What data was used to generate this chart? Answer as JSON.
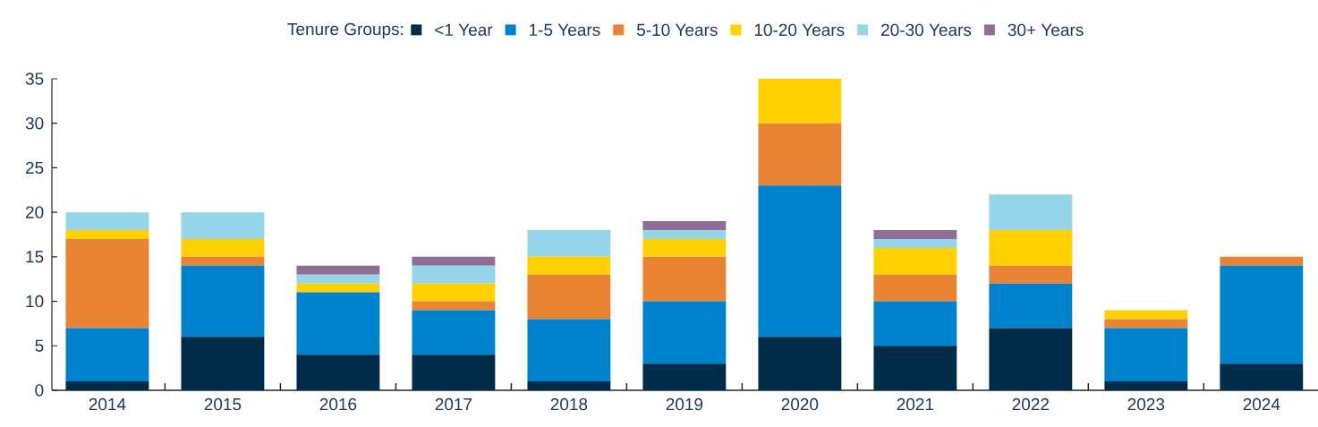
{
  "chart_data": {
    "type": "bar",
    "stacked": true,
    "legend_title": "Tenure Groups:",
    "legend": "top",
    "categories": [
      "2014",
      "2015",
      "2016",
      "2017",
      "2018",
      "2019",
      "2020",
      "2021",
      "2022",
      "2023",
      "2024"
    ],
    "ylim": [
      0,
      35
    ],
    "yticks": [
      0,
      5,
      10,
      15,
      20,
      25,
      30,
      35
    ],
    "grid": false,
    "series": [
      {
        "name": "<1 Year",
        "color": "#002b49",
        "values": [
          1,
          6,
          4,
          4,
          1,
          3,
          6,
          5,
          7,
          1,
          3
        ]
      },
      {
        "name": "1-5 Years",
        "color": "#0081cb",
        "values": [
          6,
          8,
          7,
          5,
          7,
          7,
          17,
          5,
          5,
          6,
          11
        ]
      },
      {
        "name": "5-10 Years",
        "color": "#e88434",
        "values": [
          10,
          1,
          0,
          1,
          5,
          5,
          7,
          3,
          2,
          1,
          1
        ]
      },
      {
        "name": "10-20 Years",
        "color": "#ffd100",
        "values": [
          1,
          2,
          1,
          2,
          2,
          2,
          5,
          3,
          4,
          1,
          0
        ]
      },
      {
        "name": "20-30 Years",
        "color": "#94d5ea",
        "values": [
          2,
          3,
          1,
          2,
          3,
          1,
          0,
          1,
          4,
          0,
          0
        ]
      },
      {
        "name": "30+ Years",
        "color": "#8f6e96",
        "values": [
          0,
          0,
          1,
          1,
          0,
          1,
          0,
          1,
          0,
          0,
          0
        ]
      }
    ]
  }
}
